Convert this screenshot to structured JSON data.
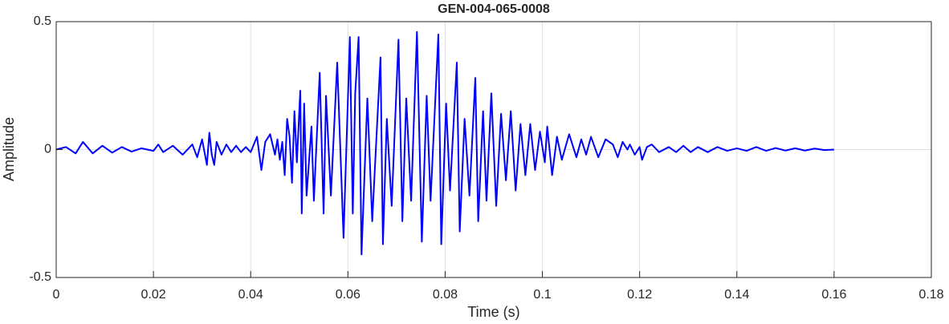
{
  "chart_data": {
    "type": "line",
    "title": "GEN-004-065-0008",
    "x_label": "Time (s)",
    "y_label": "Amplitude",
    "color": "#0000ff",
    "grid": true,
    "xlim": [
      0,
      0.18
    ],
    "ylim": [
      -0.5,
      0.5
    ],
    "xticks": [
      0,
      0.02,
      0.04,
      0.06,
      0.08,
      0.1,
      0.12,
      0.14,
      0.16,
      0.18
    ],
    "yticks": [
      -0.5,
      0,
      0.5
    ],
    "x": [
      0,
      0.002,
      0.004,
      0.0055,
      0.0075,
      0.0095,
      0.0115,
      0.0135,
      0.0155,
      0.0175,
      0.02,
      0.021,
      0.022,
      0.024,
      0.026,
      0.028,
      0.029,
      0.03,
      0.031,
      0.0315,
      0.032,
      0.0325,
      0.033,
      0.034,
      0.035,
      0.036,
      0.037,
      0.038,
      0.039,
      0.04,
      0.0413,
      0.0422,
      0.043,
      0.044,
      0.045,
      0.0455,
      0.046,
      0.0465,
      0.047,
      0.0475,
      0.048,
      0.0485,
      0.049,
      0.0495,
      0.0502,
      0.0505,
      0.051,
      0.0515,
      0.0525,
      0.053,
      0.0542,
      0.055,
      0.0555,
      0.0565,
      0.0578,
      0.0591,
      0.0604,
      0.061,
      0.0615,
      0.0622,
      0.0628,
      0.064,
      0.065,
      0.0667,
      0.0672,
      0.068,
      0.069,
      0.0704,
      0.0712,
      0.072,
      0.073,
      0.0742,
      0.0752,
      0.0762,
      0.077,
      0.0786,
      0.0792,
      0.0802,
      0.081,
      0.0824,
      0.083,
      0.084,
      0.085,
      0.0862,
      0.0868,
      0.0878,
      0.0885,
      0.0895,
      0.0905,
      0.0915,
      0.0925,
      0.0935,
      0.0945,
      0.0955,
      0.0965,
      0.0975,
      0.0985,
      0.0995,
      0.1005,
      0.101,
      0.102,
      0.103,
      0.104,
      0.1055,
      0.107,
      0.108,
      0.109,
      0.11,
      0.1115,
      0.113,
      0.1145,
      0.1155,
      0.1165,
      0.1175,
      0.118,
      0.119,
      0.12,
      0.1205,
      0.1215,
      0.1225,
      0.124,
      0.126,
      0.1275,
      0.129,
      0.1305,
      0.132,
      0.134,
      0.136,
      0.138,
      0.14,
      0.142,
      0.144,
      0.146,
      0.148,
      0.15,
      0.152,
      0.154,
      0.156,
      0.158,
      0.16
    ],
    "values": [
      0,
      0.01,
      -0.015,
      0.03,
      -0.015,
      0.015,
      -0.012,
      0.01,
      -0.008,
      0.005,
      -0.005,
      0.02,
      -0.01,
      0.015,
      -0.02,
      0.02,
      -0.03,
      0.04,
      -0.06,
      0.066,
      -0.02,
      -0.06,
      0.03,
      -0.02,
      0.02,
      -0.01,
      0.015,
      -0.01,
      0.01,
      -0.01,
      0.05,
      -0.08,
      0.03,
      0.06,
      -0.02,
      0.04,
      -0.04,
      0.03,
      -0.1,
      0.12,
      0.05,
      -0.13,
      0.15,
      -0.05,
      0.23,
      -0.25,
      0.18,
      -0.18,
      0.09,
      -0.2,
      0.3,
      -0.25,
      0.21,
      -0.18,
      0.34,
      -0.345,
      0.44,
      -0.25,
      0.22,
      0.44,
      -0.41,
      0.2,
      -0.28,
      0.36,
      -0.37,
      0.12,
      -0.22,
      0.43,
      -0.28,
      0.2,
      -0.2,
      0.46,
      -0.36,
      0.21,
      -0.2,
      0.45,
      -0.37,
      0.18,
      -0.16,
      0.34,
      -0.32,
      0.12,
      -0.18,
      0.28,
      -0.28,
      0.15,
      -0.2,
      0.22,
      -0.22,
      0.14,
      -0.12,
      0.15,
      -0.16,
      0.1,
      -0.1,
      0.1,
      -0.08,
      0.07,
      -0.05,
      0.09,
      -0.1,
      0.05,
      -0.04,
      0.06,
      -0.03,
      0.04,
      -0.02,
      0.05,
      -0.03,
      0.04,
      0.02,
      -0.03,
      0.03,
      0,
      0.02,
      -0.02,
      0.01,
      -0.04,
      0.01,
      0.02,
      -0.01,
      0.01,
      -0.01,
      0.015,
      -0.01,
      0.01,
      -0.01,
      0.01,
      -0.005,
      0.005,
      -0.005,
      0.01,
      -0.005,
      0.006,
      -0.004,
      0.005,
      -0.004,
      0.004,
      -0.002,
      0
    ]
  }
}
